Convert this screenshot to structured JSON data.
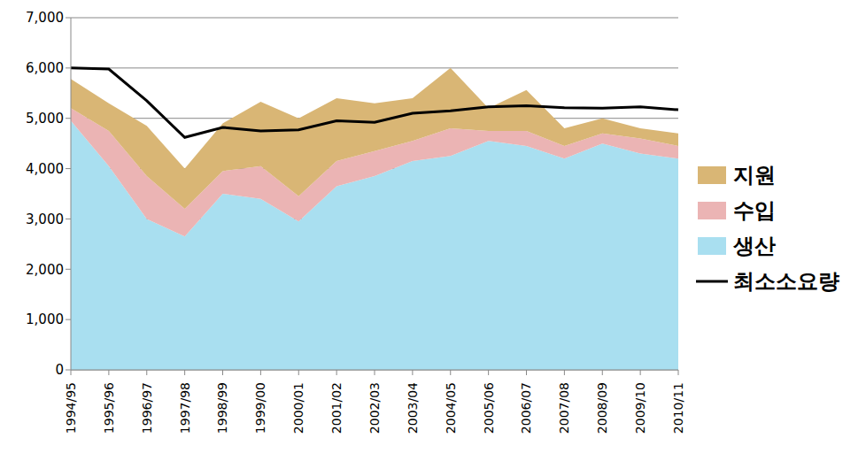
{
  "chart_data": {
    "type": "area",
    "stacked": true,
    "grid": true,
    "legend": "right",
    "categories": [
      "1994/95",
      "1995/96",
      "1996/97",
      "1997/98",
      "1998/99",
      "1999/00",
      "2000/01",
      "2001/02",
      "2002/03",
      "2003/04",
      "2004/05",
      "2005/06",
      "2006/07",
      "2007/08",
      "2008/09",
      "2009/10",
      "2010/11"
    ],
    "ylim": [
      0,
      7000
    ],
    "yticks": [
      0,
      {
        "value": 1000,
        "label": "1,000"
      },
      {
        "value": 2000,
        "label": "2,000"
      },
      {
        "value": 3000,
        "label": "3,000"
      },
      {
        "value": 4000,
        "label": "4,000"
      },
      {
        "value": 5000,
        "label": "5,000"
      },
      {
        "value": 6000,
        "label": "6,000"
      },
      {
        "value": 7000,
        "label": "7,000"
      }
    ],
    "series": [
      {
        "name": "지원",
        "type": "area",
        "color": "#d9b675",
        "values": [
          580,
          550,
          1000,
          800,
          950,
          1280,
          1550,
          1250,
          950,
          850,
          1200,
          450,
          810,
          350,
          300,
          200,
          250
        ]
      },
      {
        "name": "수입",
        "type": "area",
        "color": "#ebb4b4",
        "values": [
          250,
          700,
          850,
          550,
          450,
          650,
          500,
          500,
          500,
          400,
          550,
          200,
          300,
          250,
          200,
          300,
          250
        ]
      },
      {
        "name": "생산",
        "type": "area",
        "color": "#a9dff0",
        "values": [
          4950,
          4050,
          3000,
          2650,
          3500,
          3400,
          2950,
          3650,
          3850,
          4150,
          4250,
          4550,
          4450,
          4200,
          4500,
          4300,
          4200
        ]
      },
      {
        "name": "최소소요량",
        "type": "line",
        "color": "#000000",
        "values": [
          6000,
          5980,
          5350,
          4620,
          4820,
          4750,
          4770,
          4950,
          4920,
          5100,
          5150,
          5230,
          5250,
          5210,
          5200,
          5230,
          5170
        ]
      }
    ]
  }
}
